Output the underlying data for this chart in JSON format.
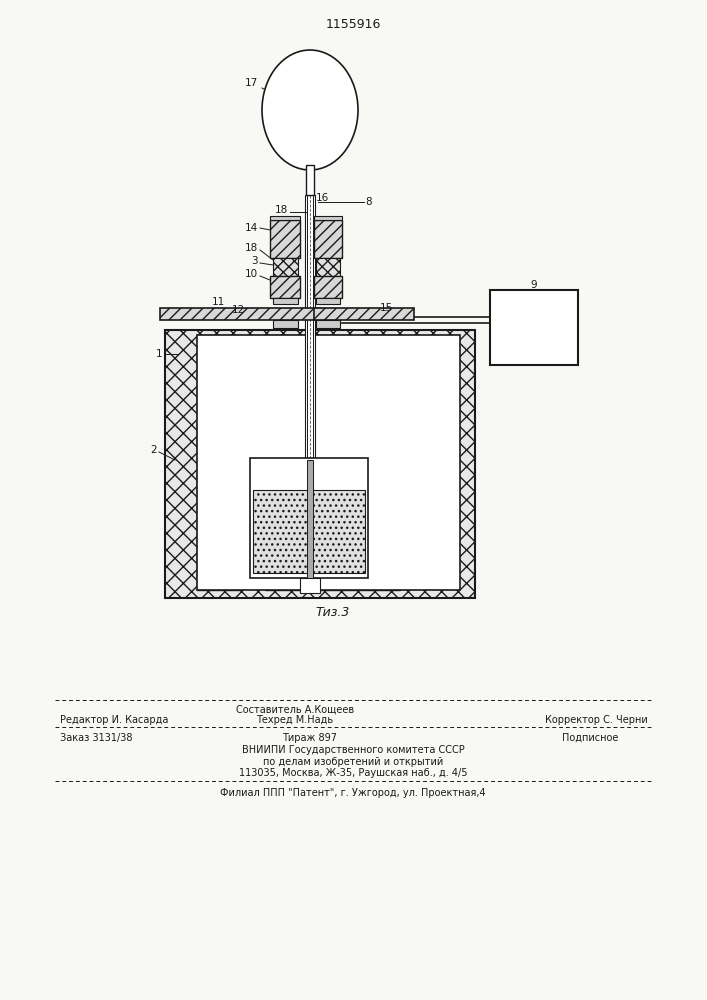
{
  "patent_number": "1155916",
  "bg_color": "#f8f8f5",
  "line_color": "#1a1a1a",
  "fig_caption": "Τиз.3",
  "footer_line1_left": "Редактор И. Касарда",
  "footer_line1_center_top": "Составитель А.Кощеев",
  "footer_line1_center": "Техред М.Надь",
  "footer_line1_right": "Корректор С. Черни",
  "footer_line2_left": "Заказ 3131/38",
  "footer_line2_center": "Тираж 897",
  "footer_line2_right": "Подписное",
  "footer_line3": "ВНИИПИ Государственного комитета СССР",
  "footer_line4": "по делам изобретений и открытий",
  "footer_line5": "113035, Москва, Ж-35, Раушская наб., д. 4/5",
  "footer_line6": "Филиал ППП \"Патент\", г. Ужгород, ул. Проектная,4"
}
